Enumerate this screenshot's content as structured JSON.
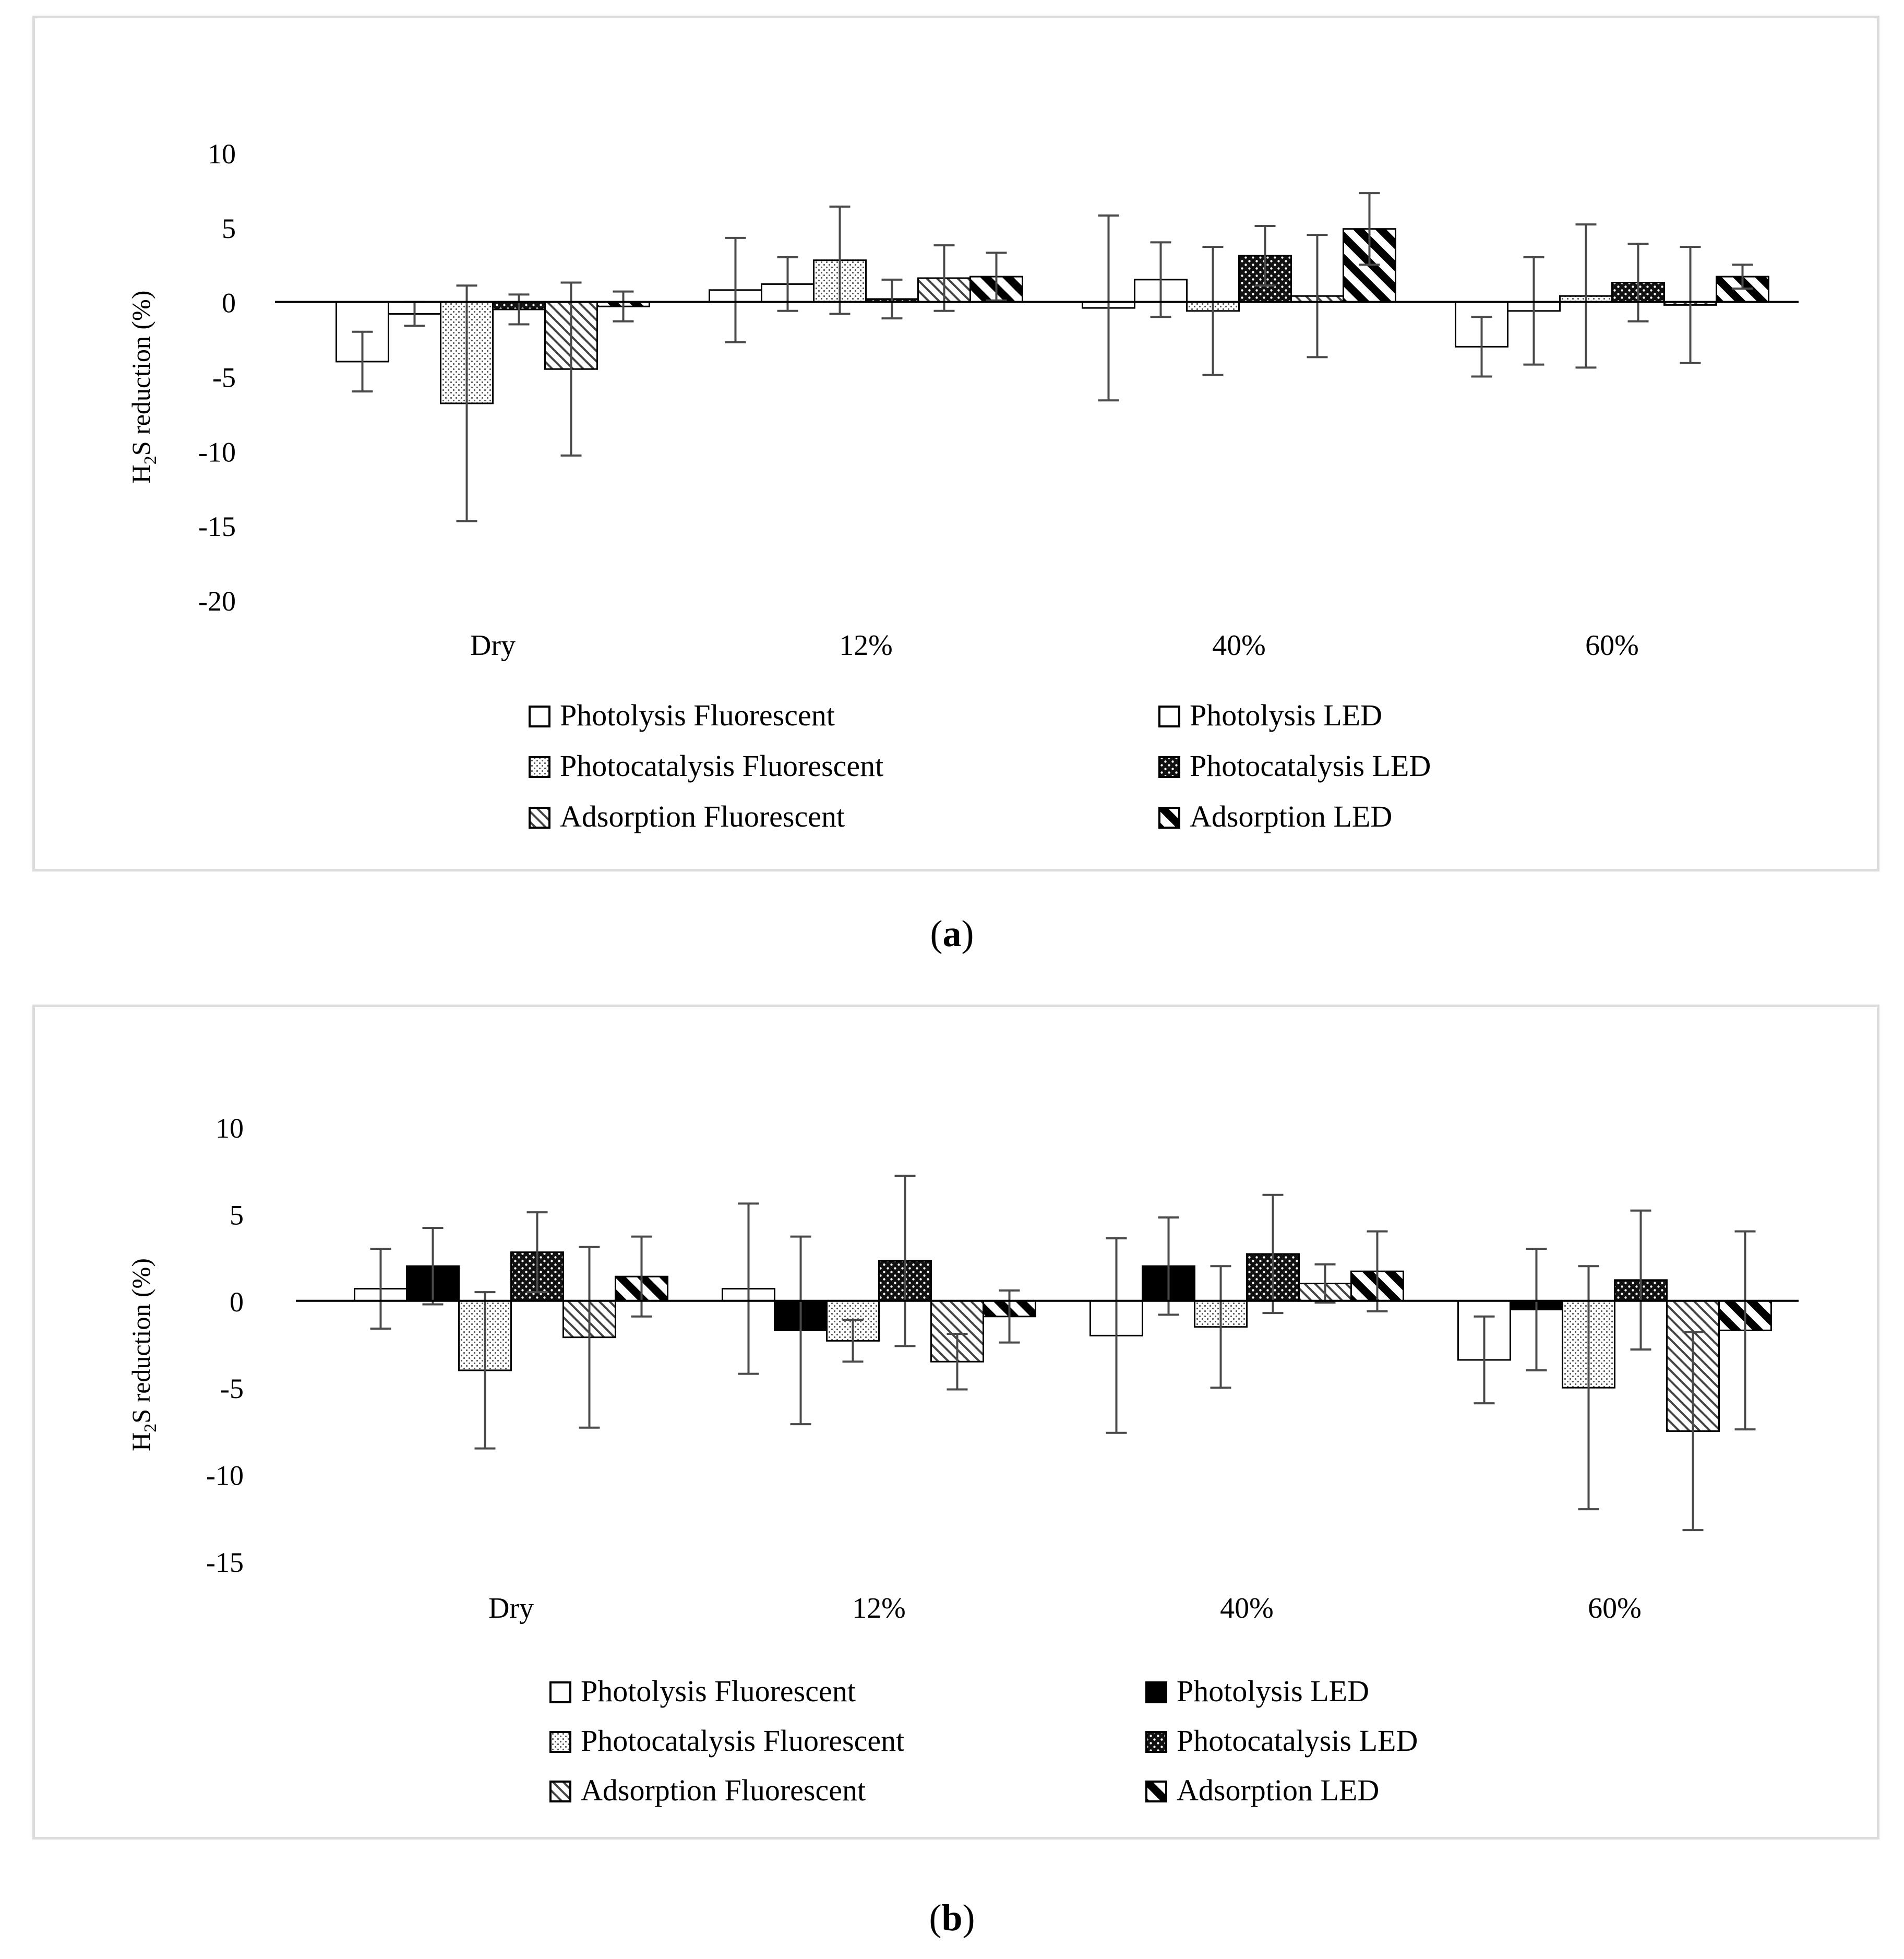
{
  "chart_data": [
    {
      "panel_label": "a",
      "type": "bar",
      "title": "",
      "xlabel": "",
      "ylabel": {
        "prefix": "H",
        "sub1": "2",
        "mid": "S",
        "suffix": " reduction (%)"
      },
      "ylim": [
        -20,
        10
      ],
      "yticks": [
        10,
        5,
        0,
        -5,
        -10,
        -15,
        -20
      ],
      "categories": [
        "Dry",
        "12%",
        "40%",
        "60%"
      ],
      "series": [
        {
          "name": "Photolysis Fluorescent",
          "pattern": "white",
          "values": [
            -4.0,
            0.8,
            -0.4,
            -3.0
          ],
          "errors": [
            2.0,
            3.5,
            6.2,
            2.0
          ]
        },
        {
          "name": "Photolysis LED",
          "pattern": "white",
          "values": [
            -0.8,
            1.2,
            1.5,
            -0.6
          ],
          "errors": [
            0.8,
            1.8,
            2.5,
            3.6
          ]
        },
        {
          "name": "Photocatalysis Fluorescent",
          "pattern": "dots",
          "values": [
            -6.8,
            2.8,
            -0.6,
            0.4
          ],
          "errors": [
            7.9,
            3.6,
            4.3,
            4.8
          ]
        },
        {
          "name": "Photocatalysis LED",
          "pattern": "darkdots",
          "values": [
            -0.5,
            0.2,
            3.1,
            1.3
          ],
          "errors": [
            1.0,
            1.3,
            2.0,
            2.6
          ]
        },
        {
          "name": "Adsorption Fluorescent",
          "pattern": "hatch",
          "values": [
            -4.5,
            1.6,
            0.4,
            -0.2
          ],
          "errors": [
            5.8,
            2.2,
            4.1,
            3.9
          ]
        },
        {
          "name": "Adsorption LED",
          "pattern": "boldhatch",
          "values": [
            -0.3,
            1.7,
            4.9,
            1.7
          ],
          "errors": [
            1.0,
            1.6,
            2.4,
            0.8
          ]
        }
      ],
      "legend_position": "bottom"
    },
    {
      "panel_label": "b",
      "type": "bar",
      "title": "",
      "xlabel": "",
      "ylabel": {
        "prefix": "H",
        "sub1": "2",
        "mid": "S",
        "suffix": " reduction (%)"
      },
      "ylim": [
        -15,
        10
      ],
      "yticks": [
        10,
        5,
        0,
        -5,
        -10,
        -15
      ],
      "categories": [
        "Dry",
        "12%",
        "40%",
        "60%"
      ],
      "series": [
        {
          "name": "Photolysis Fluorescent",
          "pattern": "white",
          "values": [
            0.7,
            0.7,
            -2.0,
            -3.4
          ],
          "errors": [
            2.3,
            4.9,
            5.6,
            2.5
          ]
        },
        {
          "name": "Photolysis LED",
          "pattern": "black",
          "values": [
            2.0,
            -1.7,
            2.0,
            -0.5
          ],
          "errors": [
            2.2,
            5.4,
            2.8,
            3.5
          ]
        },
        {
          "name": "Photocatalysis Fluorescent",
          "pattern": "dots",
          "values": [
            -4.0,
            -2.3,
            -1.5,
            -5.0
          ],
          "errors": [
            4.5,
            1.2,
            3.5,
            7.0
          ]
        },
        {
          "name": "Photocatalysis LED",
          "pattern": "darkdots",
          "values": [
            2.8,
            2.3,
            2.7,
            1.2
          ],
          "errors": [
            2.3,
            4.9,
            3.4,
            4.0
          ]
        },
        {
          "name": "Adsorption Fluorescent",
          "pattern": "hatch",
          "values": [
            -2.1,
            -3.5,
            1.0,
            -7.5
          ],
          "errors": [
            5.2,
            1.6,
            1.1,
            5.7
          ]
        },
        {
          "name": "Adsorption LED",
          "pattern": "boldhatch",
          "values": [
            1.4,
            -0.9,
            1.7,
            -1.7
          ],
          "errors": [
            2.3,
            1.5,
            2.3,
            5.7
          ]
        }
      ],
      "legend_position": "bottom"
    }
  ],
  "captions": {
    "a": "a",
    "b": "b"
  }
}
